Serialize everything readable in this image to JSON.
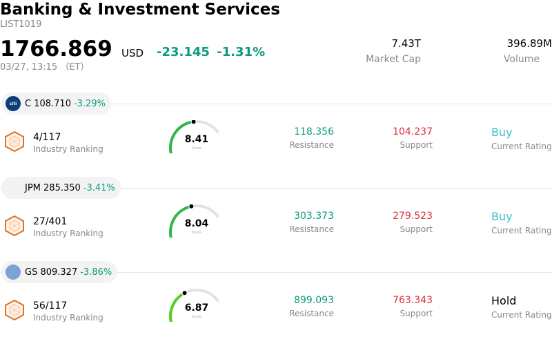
{
  "header": {
    "title": "Banking & Investment Services",
    "code": "LIST1019",
    "price": "1766.869",
    "currency": "USD",
    "change": "-23.145",
    "change_pct": "-1.31%",
    "timestamp": "03/27, 13:15 （ET）",
    "market_cap_value": "7.43T",
    "market_cap_label": "Market Cap",
    "volume_value": "396.89M",
    "volume_label": "Volume"
  },
  "colors": {
    "positive_green": "#0a9a7d",
    "support_red": "#e0303a",
    "buy_teal": "#3dbfc9",
    "rank_orange": "#e0701f",
    "gauge_track": "#e1e1ea"
  },
  "stocks": [
    {
      "ticker": "C",
      "price": "108.710",
      "change_pct": "-3.29%",
      "logo_icon": "citi-logo-icon",
      "logo_text": "citi",
      "logo_bg": "#0d3d7a",
      "logo_fg": "#ffffff",
      "rank": "4/117",
      "rank_label": "Industry Ranking",
      "score": "8.41",
      "score_value": 8.41,
      "score_label": "Score",
      "gauge_color": "#2db84a",
      "resistance": "118.356",
      "resistance_label": "Resistance",
      "support": "104.237",
      "support_label": "Support",
      "rating": "Buy",
      "rating_label": "Current Rating",
      "rating_color": "#3dbfc9"
    },
    {
      "ticker": "JPM",
      "price": "285.350",
      "change_pct": "-3.41%",
      "logo_icon": "jpmorgan-logo-icon",
      "logo_text": "",
      "logo_bg": "#f3f3f3",
      "logo_fg": "#777777",
      "rank": "27/401",
      "rank_label": "Industry Ranking",
      "score": "8.04",
      "score_value": 8.04,
      "score_label": "Score",
      "gauge_color": "#2db84a",
      "resistance": "303.373",
      "resistance_label": "Resistance",
      "support": "279.523",
      "support_label": "Support",
      "rating": "Buy",
      "rating_label": "Current Rating",
      "rating_color": "#3dbfc9"
    },
    {
      "ticker": "GS",
      "price": "809.327",
      "change_pct": "-3.86%",
      "logo_icon": "goldman-sachs-logo-icon",
      "logo_text": "",
      "logo_bg": "#7aa3d4",
      "logo_fg": "#ffffff",
      "rank": "56/117",
      "rank_label": "Industry Ranking",
      "score": "6.87",
      "score_value": 6.87,
      "score_label": "Score",
      "gauge_color": "#52d01e",
      "resistance": "899.093",
      "resistance_label": "Resistance",
      "support": "763.343",
      "support_label": "Support",
      "rating": "Hold",
      "rating_label": "Current Rating",
      "rating_color": "#000000"
    }
  ]
}
